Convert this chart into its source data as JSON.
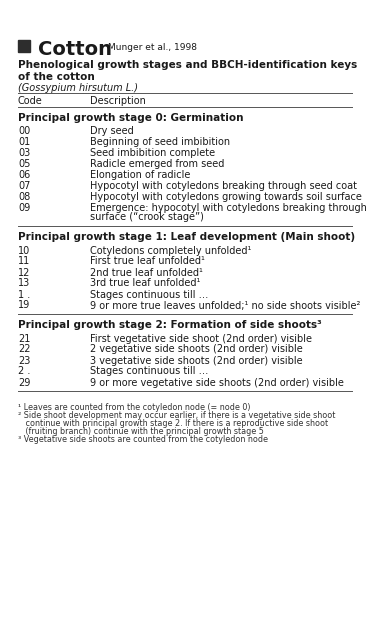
{
  "bg_color": "#ffffff",
  "title_square_color": "#2d2d2d",
  "title_text": "Cotton",
  "title_ref": "Munger et al., 1998",
  "subtitle1": "Phenological growth stages and BBCH-identification keys",
  "subtitle2": "of the cotton",
  "subtitle3": "(Gossypium hirsutum L.)",
  "col_header_code": "Code",
  "col_header_desc": "Description",
  "sections": [
    {
      "header": "Principal growth stage 0: Germination",
      "rows": [
        [
          "00",
          "Dry seed"
        ],
        [
          "01",
          "Beginning of seed imbibition"
        ],
        [
          "03",
          "Seed imbibition complete"
        ],
        [
          "05",
          "Radicle emerged from seed"
        ],
        [
          "06",
          "Elongation of radicle"
        ],
        [
          "07",
          "Hypocotyl with cotyledons breaking through seed coat"
        ],
        [
          "08",
          "Hypocotyl with cotyledons growing towards soil surface"
        ],
        [
          "09",
          "Emergence: hypocotyl with cotyledons breaking through soil\nsurface (“crook stage”)"
        ]
      ]
    },
    {
      "header": "Principal growth stage 1: Leaf development (Main shoot)",
      "rows": [
        [
          "10",
          "Cotyledons completely unfolded¹"
        ],
        [
          "11",
          "First true leaf unfolded¹"
        ],
        [
          "12",
          "2nd true leaf unfolded¹"
        ],
        [
          "13",
          "3rd true leaf unfolded¹"
        ],
        [
          "1 .",
          "Stages continuous till …"
        ],
        [
          "19",
          "9 or more true leaves unfolded;¹ no side shoots visible²"
        ]
      ]
    },
    {
      "header": "Principal growth stage 2: Formation of side shoots³",
      "rows": [
        [
          "21",
          "First vegetative side shoot (2nd order) visible"
        ],
        [
          "22",
          "2 vegetative side shoots (2nd order) visible"
        ],
        [
          "23",
          "3 vegetative side shoots (2nd order) visible"
        ],
        [
          "2 .",
          "Stages continuous till …"
        ],
        [
          "29",
          "9 or more vegetative side shoots (2nd order) visible"
        ]
      ]
    }
  ],
  "footnotes": [
    "¹ Leaves are counted from the cotyledon node (= node 0)",
    "² Side shoot development may occur earlier, if there is a vegetative side shoot\n   continue with principal growth stage 2. If there is a reproductive side shoot\n   (fruiting branch) continue with the principal growth stage 5",
    "³ Vegetative side shoots are counted from the cotyledon node"
  ]
}
